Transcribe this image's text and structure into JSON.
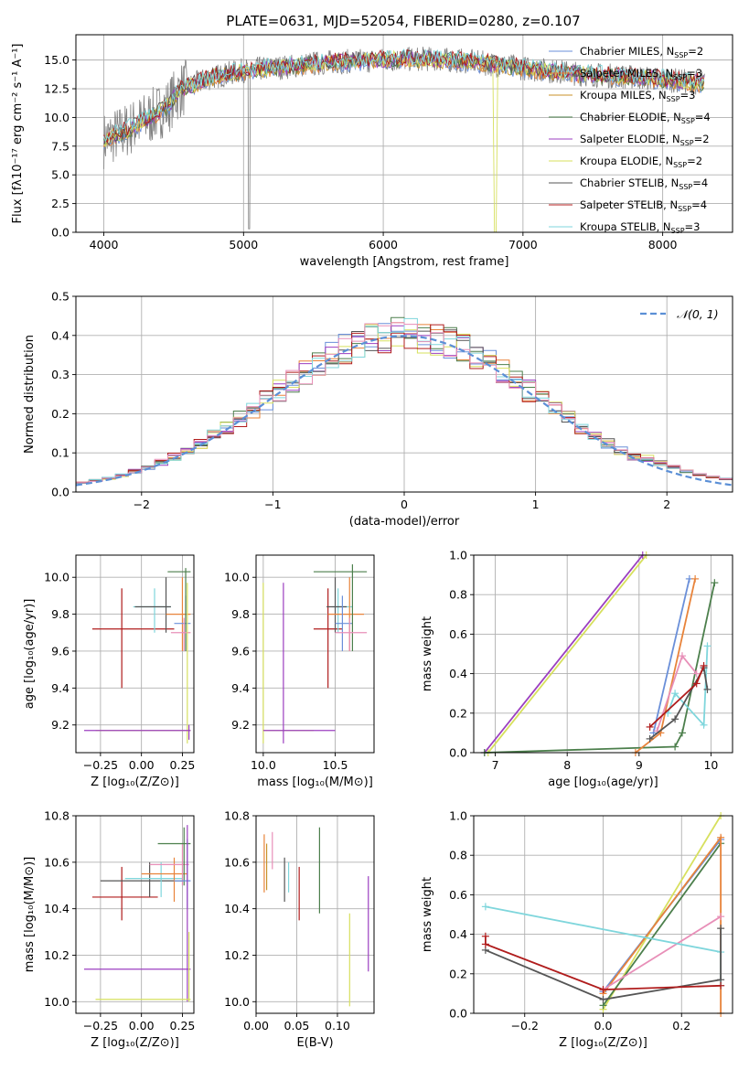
{
  "title": "PLATE=0631, MJD=52054, FIBERID=0280, z=0.107",
  "colors": {
    "chabrier_miles": "#6a8fd9",
    "salpeter_miles": "#e8833a",
    "kroupa_miles": "#c8922a",
    "chabrier_elodie": "#4c7f4c",
    "salpeter_elodie": "#9b3fc0",
    "kroupa_elodie": "#d7e05e",
    "chabrier_stelib": "#555555",
    "salpeter_stelib": "#b01c1c",
    "kroupa_stelib": "#7fd6dc",
    "pink": "#e88fb8",
    "data": "#808080",
    "gaussian": "#5b8fd6",
    "grid": "#b0b0b0"
  },
  "chart_data": [
    {
      "type": "line",
      "id": "spectrum",
      "title": "PLATE=0631, MJD=52054, FIBERID=0280, z=0.107",
      "xlabel": "wavelength [Angstrom, rest frame]",
      "ylabel": "Flux [fλ10⁻¹⁷ erg cm⁻² s⁻¹ A⁻¹]",
      "xlim": [
        3800,
        8500
      ],
      "ylim": [
        0,
        17.2
      ],
      "xticks": [
        "4000",
        "5000",
        "6000",
        "7000",
        "8000"
      ],
      "yticks": [
        "0.0",
        "2.5",
        "5.0",
        "7.5",
        "10.0",
        "12.5",
        "15.0"
      ],
      "legend_position": "right",
      "legend": [
        {
          "label": "Chabrier MILES, N",
          "sub": "SSP",
          "suffix": "=2"
        },
        {
          "label": "Salpeter MILES, N",
          "sub": "SSP",
          "suffix": "=3"
        },
        {
          "label": "Kroupa MILES, N",
          "sub": "SSP",
          "suffix": "=3"
        },
        {
          "label": "Chabrier ELODIE, N",
          "sub": "SSP",
          "suffix": "=4"
        },
        {
          "label": "Salpeter ELODIE, N",
          "sub": "SSP",
          "suffix": "=2"
        },
        {
          "label": "Kroupa ELODIE, N",
          "sub": "SSP",
          "suffix": "=2"
        },
        {
          "label": "Chabrier STELIB, N",
          "sub": "SSP",
          "suffix": "=4"
        },
        {
          "label": "Salpeter STELIB, N",
          "sub": "SSP",
          "suffix": "=4"
        },
        {
          "label": "Kroupa STELIB, N",
          "sub": "SSP",
          "suffix": "=3"
        }
      ],
      "continuum": [
        [
          4000,
          8.0
        ],
        [
          4150,
          8.8
        ],
        [
          4300,
          9.8
        ],
        [
          4450,
          10.9
        ],
        [
          4550,
          12.4
        ],
        [
          4750,
          13.4
        ],
        [
          5000,
          14.1
        ],
        [
          5300,
          14.4
        ],
        [
          5600,
          14.8
        ],
        [
          6000,
          15.0
        ],
        [
          6300,
          15.1
        ],
        [
          6600,
          14.9
        ],
        [
          7000,
          14.3
        ],
        [
          7400,
          13.8
        ],
        [
          7800,
          13.5
        ],
        [
          8000,
          13.3
        ],
        [
          8300,
          13.0
        ]
      ]
    },
    {
      "type": "histogram",
      "id": "residuals",
      "xlabel": "(data-model)/error",
      "ylabel": "Normed distribution",
      "xlim": [
        -2.5,
        2.5
      ],
      "ylim": [
        0,
        0.5
      ],
      "xticks": [
        "−2",
        "−1",
        "0",
        "1",
        "2"
      ],
      "yticks": [
        "0.0",
        "0.1",
        "0.2",
        "0.3",
        "0.4",
        "0.5"
      ],
      "grid": true,
      "legend_position": "top-right",
      "legend_label": "𝒩(0, 1)",
      "bin_width": 0.1
    },
    {
      "type": "scatter",
      "id": "age-vs-Z",
      "xlabel": "Z [log₁₀(Z/Z⊙)]",
      "ylabel": "age [log₁₀(age/yr)]",
      "xlim": [
        -0.4,
        0.32
      ],
      "ylim": [
        9.05,
        10.12
      ],
      "xticks": [
        "−0.25",
        "0.00",
        "0.25"
      ],
      "yticks": [
        "9.2",
        "9.4",
        "9.6",
        "9.8",
        "10.0"
      ]
    },
    {
      "type": "scatter",
      "id": "age-vs-mass",
      "xlabel": "mass [log₁₀(M/M⊙)]",
      "xlim": [
        9.95,
        10.77
      ],
      "ylim": [
        9.05,
        10.12
      ],
      "xticks": [
        "10.0",
        "10.5"
      ],
      "yticks": [
        "9.2",
        "9.4",
        "9.6",
        "9.8",
        "10.0"
      ]
    },
    {
      "type": "line",
      "id": "weight-vs-age",
      "xlabel": "age [log₁₀(age/yr)]",
      "ylabel": "mass weight",
      "xlim": [
        6.7,
        10.3
      ],
      "ylim": [
        0,
        1
      ],
      "xticks": [
        "7",
        "8",
        "9",
        "10"
      ],
      "yticks": [
        "0.0",
        "0.2",
        "0.4",
        "0.6",
        "0.8",
        "1.0"
      ],
      "grid": true
    },
    {
      "type": "scatter",
      "id": "mass-vs-Z",
      "xlabel": "Z [log₁₀(Z/Z⊙)]",
      "ylabel": "mass [log₁₀(M/M⊙)]",
      "xlim": [
        -0.4,
        0.32
      ],
      "ylim": [
        9.95,
        10.8
      ],
      "xticks": [
        "−0.25",
        "0.00",
        "0.25"
      ],
      "yticks": [
        "10.0",
        "10.2",
        "10.4",
        "10.6",
        "10.8"
      ]
    },
    {
      "type": "scatter",
      "id": "mass-vs-EBV",
      "xlabel": "E(B-V)",
      "xlim": [
        0,
        0.145
      ],
      "ylim": [
        9.95,
        10.8
      ],
      "xticks": [
        "0.00",
        "0.05",
        "0.10"
      ],
      "yticks": [
        "10.0",
        "10.2",
        "10.4",
        "10.6",
        "10.8"
      ]
    },
    {
      "type": "line",
      "id": "weight-vs-Z",
      "xlabel": "Z [log₁₀(Z/Z⊙)]",
      "ylabel": "mass weight",
      "xlim": [
        -0.33,
        0.33
      ],
      "ylim": [
        0,
        1
      ],
      "xticks": [
        "−0.2",
        "0.0",
        "0.2"
      ],
      "yticks": [
        "0.0",
        "0.2",
        "0.4",
        "0.6",
        "0.8",
        "1.0"
      ],
      "grid": true
    }
  ]
}
